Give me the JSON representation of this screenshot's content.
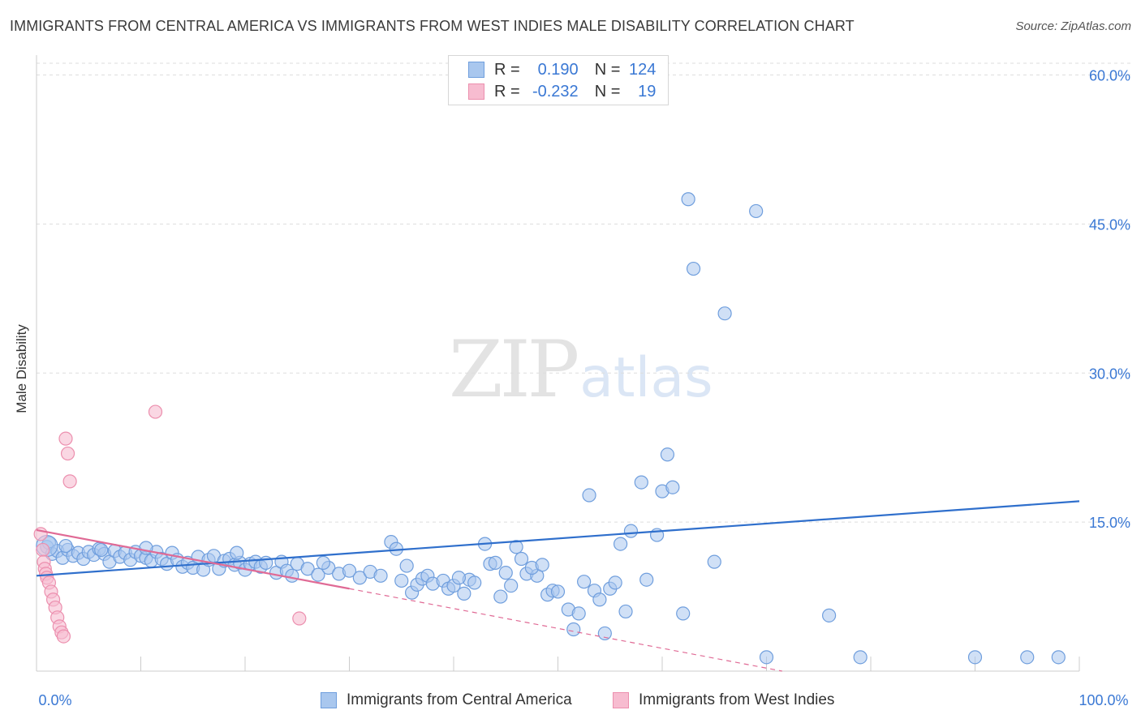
{
  "header": {
    "title": "IMMIGRANTS FROM CENTRAL AMERICA VS IMMIGRANTS FROM WEST INDIES MALE DISABILITY CORRELATION CHART",
    "source": "Source: ZipAtlas.com"
  },
  "watermark": {
    "zip": "ZIP",
    "atlas": "atlas"
  },
  "legend": {
    "rows": [
      {
        "r_label": "R =",
        "r_value": "0.190",
        "n_label": "N =",
        "n_value": "124"
      },
      {
        "r_label": "R =",
        "r_value": "-0.232",
        "n_label": "N =",
        "n_value": "19"
      }
    ]
  },
  "bottom_legend": [
    "Immigrants from Central America",
    "Immigrants from West Indies"
  ],
  "colors": {
    "blue_fill": "#a9c7ee",
    "blue_stroke": "#6f9edd",
    "blue_line": "#2f6fcc",
    "pink_fill": "#f7bcd0",
    "pink_stroke": "#ec8fae",
    "pink_line": "#e06a95",
    "tick_label": "#3a78d4",
    "grid": "#dddddd"
  },
  "chart_data": {
    "type": "scatter",
    "title": "IMMIGRANTS FROM CENTRAL AMERICA VS IMMIGRANTS FROM WEST INDIES MALE DISABILITY CORRELATION CHART",
    "xlabel": "",
    "ylabel": "Male Disability",
    "xlim": [
      0,
      100
    ],
    "ylim": [
      0,
      62
    ],
    "y_ticks": [
      15,
      30,
      45,
      60
    ],
    "y_tick_labels": [
      "15.0%",
      "30.0%",
      "45.0%",
      "60.0%"
    ],
    "x_tick_labels": [
      "0.0%",
      "100.0%"
    ],
    "grid": true,
    "legend_position": "top-center",
    "series": [
      {
        "name": "Immigrants from Central America",
        "r": 0.19,
        "n": 124,
        "trend": {
          "x": [
            0,
            100
          ],
          "y": [
            9.6,
            17.1
          ]
        },
        "points": [
          [
            1.0,
            12.5
          ],
          [
            1.2,
            12.9
          ],
          [
            1.5,
            11.8
          ],
          [
            2.0,
            12.1
          ],
          [
            2.5,
            11.4
          ],
          [
            3.0,
            12.2
          ],
          [
            3.5,
            11.6
          ],
          [
            4.0,
            11.9
          ],
          [
            4.5,
            11.3
          ],
          [
            5.0,
            12.0
          ],
          [
            5.5,
            11.7
          ],
          [
            6.0,
            12.3
          ],
          [
            6.5,
            11.8
          ],
          [
            7.0,
            11.0
          ],
          [
            7.5,
            12.1
          ],
          [
            8.0,
            11.5
          ],
          [
            8.5,
            11.9
          ],
          [
            9.0,
            11.2
          ],
          [
            9.5,
            12.0
          ],
          [
            10.0,
            11.6
          ],
          [
            10.5,
            11.4
          ],
          [
            11.0,
            11.1
          ],
          [
            11.5,
            12.0
          ],
          [
            12.0,
            11.3
          ],
          [
            12.5,
            10.8
          ],
          [
            13.0,
            11.9
          ],
          [
            13.5,
            11.2
          ],
          [
            14.0,
            10.5
          ],
          [
            14.5,
            10.9
          ],
          [
            15.0,
            10.4
          ],
          [
            15.5,
            11.5
          ],
          [
            16.0,
            10.2
          ],
          [
            16.5,
            11.2
          ],
          [
            17.0,
            11.6
          ],
          [
            17.5,
            10.3
          ],
          [
            18.0,
            11.1
          ],
          [
            18.5,
            11.3
          ],
          [
            19.0,
            10.7
          ],
          [
            19.5,
            10.9
          ],
          [
            20.0,
            10.2
          ],
          [
            20.5,
            10.8
          ],
          [
            21.0,
            11.0
          ],
          [
            21.5,
            10.5
          ],
          [
            22.0,
            10.9
          ],
          [
            23.0,
            9.9
          ],
          [
            23.5,
            11.0
          ],
          [
            24.0,
            10.1
          ],
          [
            24.5,
            9.6
          ],
          [
            25.0,
            10.8
          ],
          [
            26.0,
            10.3
          ],
          [
            27.0,
            9.7
          ],
          [
            28.0,
            10.4
          ],
          [
            29.0,
            9.8
          ],
          [
            30.0,
            10.1
          ],
          [
            31.0,
            9.4
          ],
          [
            32.0,
            10.0
          ],
          [
            33.0,
            9.6
          ],
          [
            34.0,
            13.0
          ],
          [
            34.5,
            12.3
          ],
          [
            35.0,
            9.1
          ],
          [
            36.0,
            7.9
          ],
          [
            36.5,
            8.7
          ],
          [
            37.0,
            9.3
          ],
          [
            37.5,
            9.6
          ],
          [
            38.0,
            8.8
          ],
          [
            39.0,
            9.1
          ],
          [
            39.5,
            8.3
          ],
          [
            40.0,
            8.6
          ],
          [
            41.0,
            7.8
          ],
          [
            41.5,
            9.2
          ],
          [
            42.0,
            8.9
          ],
          [
            43.0,
            12.8
          ],
          [
            43.5,
            10.8
          ],
          [
            44.0,
            10.9
          ],
          [
            45.0,
            9.9
          ],
          [
            45.5,
            8.6
          ],
          [
            46.0,
            12.5
          ],
          [
            46.5,
            11.3
          ],
          [
            47.0,
            9.8
          ],
          [
            48.0,
            9.6
          ],
          [
            49.0,
            7.7
          ],
          [
            49.5,
            8.1
          ],
          [
            50.0,
            8.0
          ],
          [
            51.0,
            6.2
          ],
          [
            51.5,
            4.2
          ],
          [
            52.0,
            5.8
          ],
          [
            53.0,
            17.7
          ],
          [
            53.5,
            8.1
          ],
          [
            54.0,
            7.2
          ],
          [
            54.5,
            3.8
          ],
          [
            55.0,
            8.3
          ],
          [
            56.0,
            12.8
          ],
          [
            57.0,
            14.1
          ],
          [
            58.0,
            19.0
          ],
          [
            58.5,
            9.2
          ],
          [
            60.0,
            18.1
          ],
          [
            60.5,
            21.8
          ],
          [
            61.0,
            18.5
          ],
          [
            62.0,
            5.8
          ],
          [
            62.5,
            47.5
          ],
          [
            63.0,
            40.5
          ],
          [
            65.0,
            11.0
          ],
          [
            66.0,
            36.0
          ],
          [
            69.0,
            46.3
          ],
          [
            70.0,
            1.4
          ],
          [
            76.0,
            5.6
          ],
          [
            79.0,
            1.4
          ],
          [
            90.0,
            1.4
          ],
          [
            95.0,
            1.4
          ],
          [
            98.0,
            1.4
          ],
          [
            10.5,
            12.4
          ],
          [
            2.8,
            12.6
          ],
          [
            6.2,
            12.2
          ],
          [
            19.2,
            11.9
          ],
          [
            27.5,
            10.9
          ],
          [
            35.5,
            10.6
          ],
          [
            40.5,
            9.4
          ],
          [
            44.5,
            7.5
          ],
          [
            47.5,
            10.4
          ],
          [
            52.5,
            9.0
          ],
          [
            56.5,
            6.0
          ],
          [
            59.5,
            13.7
          ],
          [
            55.5,
            8.9
          ],
          [
            48.5,
            10.7
          ]
        ]
      },
      {
        "name": "Immigrants from West Indies",
        "r": -0.232,
        "n": 19,
        "trend": {
          "x": [
            0,
            30
          ],
          "y": [
            14.2,
            8.3
          ]
        },
        "trend_dashed": {
          "x": [
            30,
            71.5
          ],
          "y": [
            8.3,
            0
          ]
        },
        "points": [
          [
            0.4,
            13.8
          ],
          [
            0.6,
            12.2
          ],
          [
            0.7,
            11.0
          ],
          [
            0.8,
            10.3
          ],
          [
            0.9,
            9.8
          ],
          [
            1.0,
            9.4
          ],
          [
            1.2,
            8.9
          ],
          [
            1.4,
            8.0
          ],
          [
            1.6,
            7.2
          ],
          [
            1.8,
            6.4
          ],
          [
            2.0,
            5.4
          ],
          [
            2.2,
            4.5
          ],
          [
            2.4,
            3.9
          ],
          [
            2.6,
            3.5
          ],
          [
            2.8,
            23.4
          ],
          [
            3.0,
            21.9
          ],
          [
            3.2,
            19.1
          ],
          [
            11.4,
            26.1
          ],
          [
            25.2,
            5.3
          ]
        ]
      }
    ]
  }
}
